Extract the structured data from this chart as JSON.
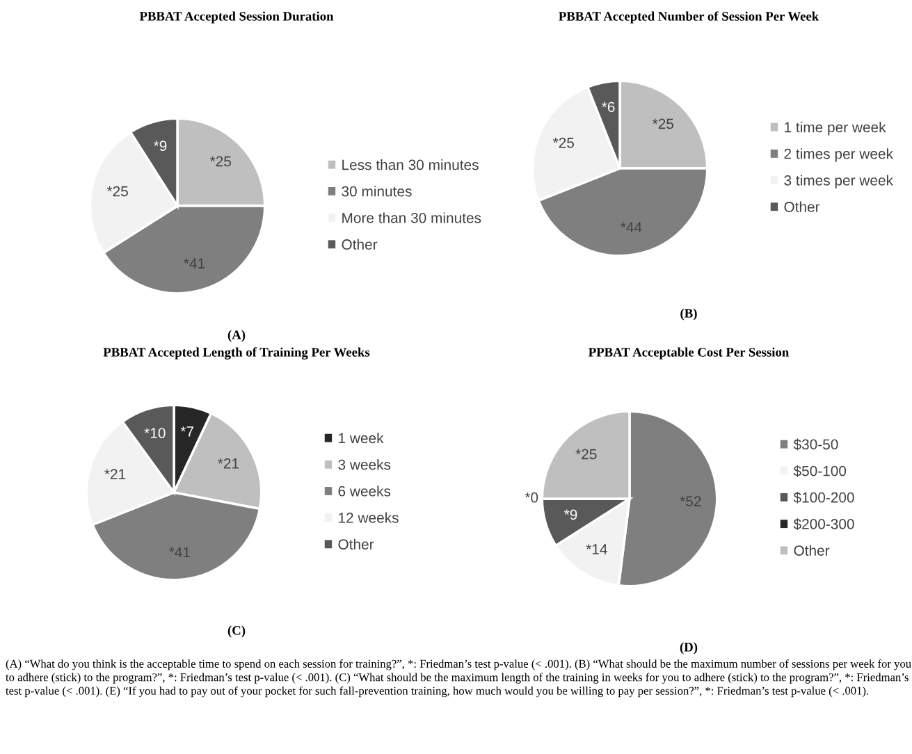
{
  "chart_data": [
    {
      "type": "pie",
      "title": "PBBAT Accepted Session Duration",
      "categories": [
        "Less than 30 minutes",
        "30 minutes",
        "More than 30 minutes",
        "Other"
      ],
      "values": [
        25,
        41,
        25,
        9
      ],
      "colors": [
        "#bfbfbf",
        "#7f7f7f",
        "#f2f2f2",
        "#595959"
      ],
      "value_labels": [
        "*25",
        "*41",
        "*25",
        "*9"
      ],
      "legend": "right",
      "annotations": [
        "(A)"
      ]
    },
    {
      "type": "pie",
      "title": "PBBAT Accepted Number of Session Per Week",
      "categories": [
        "1 time per week",
        "2 times per week",
        "3 times per week",
        "Other"
      ],
      "values": [
        25,
        44,
        25,
        6
      ],
      "colors": [
        "#bfbfbf",
        "#7f7f7f",
        "#f2f2f2",
        "#595959"
      ],
      "value_labels": [
        "*25",
        "*44",
        "*25",
        "*6"
      ],
      "legend": "right",
      "annotations": [
        "(B)"
      ]
    },
    {
      "type": "pie",
      "title": "PBBAT Accepted Length of Training Per Weeks",
      "categories": [
        "1 week",
        "3 weeks",
        "6 weeks",
        "12 weeks",
        "Other"
      ],
      "values": [
        7,
        21,
        41,
        21,
        10
      ],
      "colors": [
        "#262626",
        "#bfbfbf",
        "#7f7f7f",
        "#f2f2f2",
        "#595959"
      ],
      "value_labels": [
        "*7",
        "*21",
        "*41",
        "*21",
        "*10"
      ],
      "legend": "right",
      "annotations": [
        "(C)"
      ]
    },
    {
      "type": "pie",
      "title": "PPBAT Acceptable Cost Per Session",
      "categories": [
        "$30-50",
        "$50-100",
        "$100-200",
        "$200-300",
        "Other"
      ],
      "values": [
        52,
        14,
        9,
        0,
        25
      ],
      "colors": [
        "#7f7f7f",
        "#f2f2f2",
        "#595959",
        "#262626",
        "#bfbfbf"
      ],
      "value_labels": [
        "*52",
        "*14",
        "*9",
        "*0",
        "*25"
      ],
      "legend": "right",
      "annotations": [
        "(D)",
        "(A) “What do you think is the acceptable time to spend on each session for training?”, *: Friedman’s test p-value (< .001). (B) “What should be the maximum number of sessions per week for you to adhere (stick) to the program?”, *: Friedman’s test p-value (< .001). (C) “What should be the maximum length of the training in weeks for you to adhere (stick) to the program?”, *: Friedman’s test p-value (< .001). (E) “If you had to pay out of your pocket for such fall-prevention training, how much would you be willing to pay per session?”, *: Friedman’s test p-value (< .001)."
      ]
    }
  ]
}
